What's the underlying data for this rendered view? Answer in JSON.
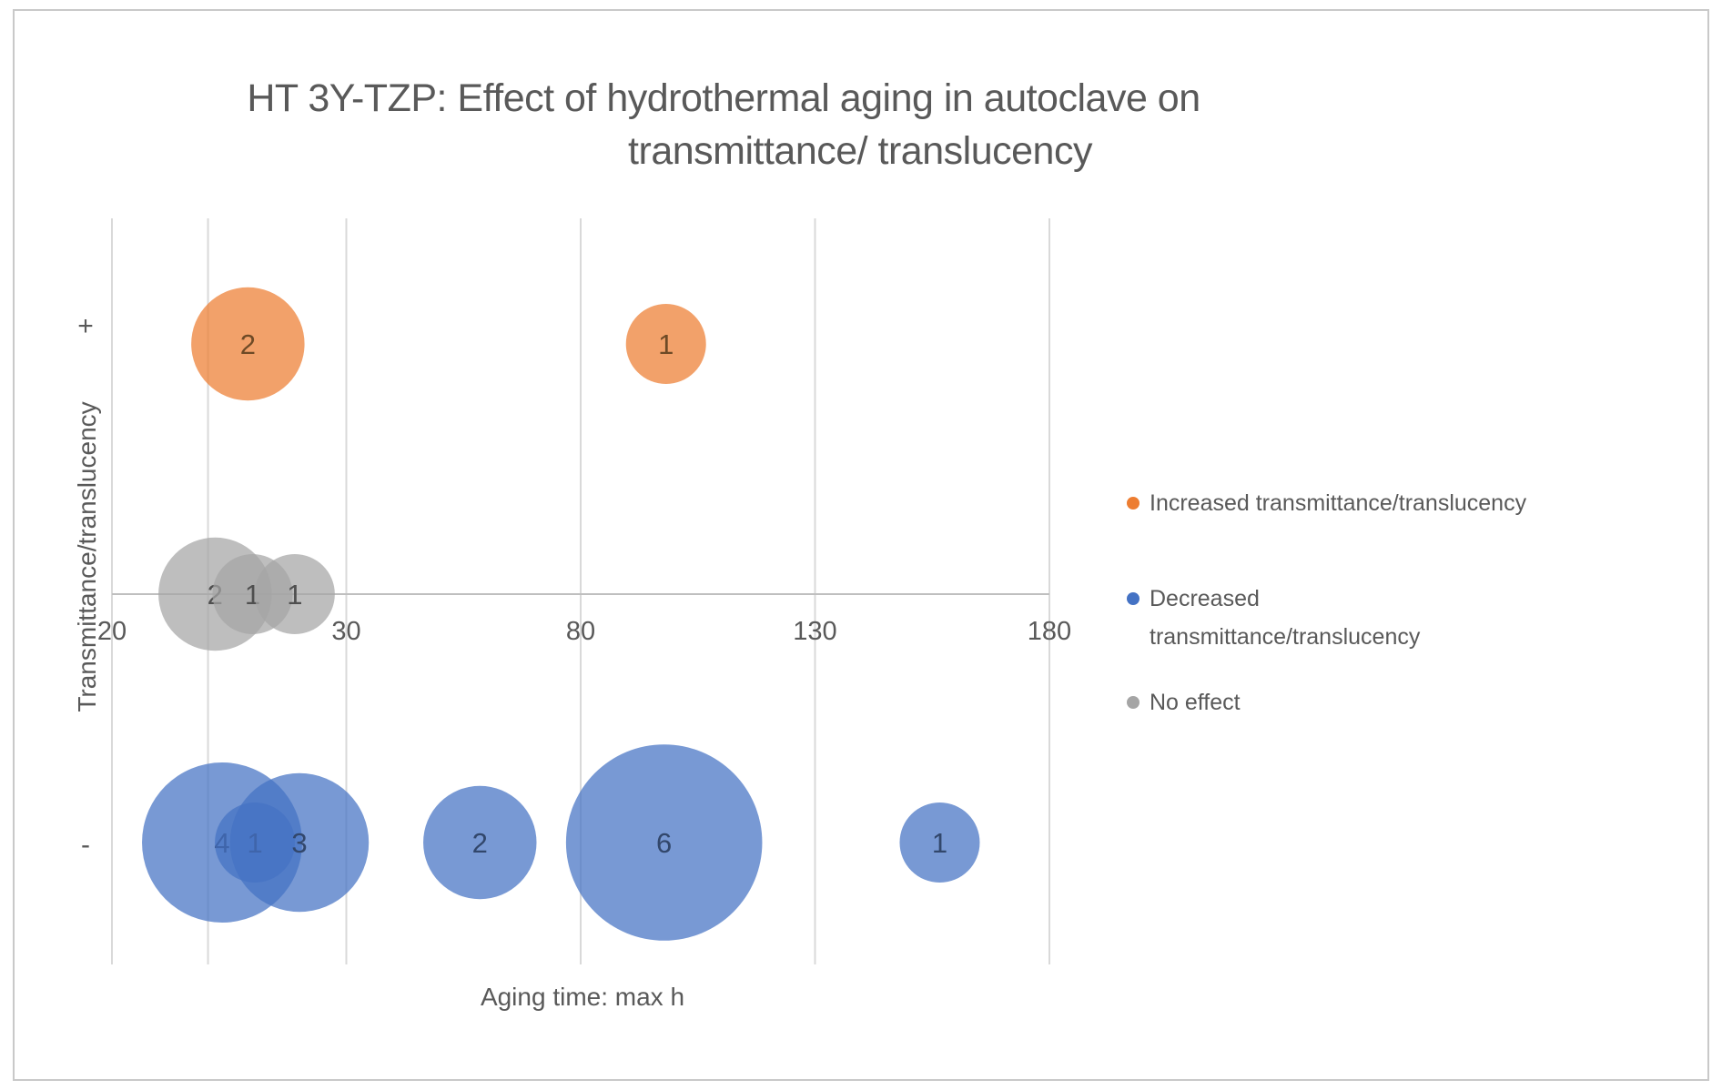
{
  "frame": {
    "border_color": "#c9c9c9",
    "background": "#ffffff"
  },
  "title": {
    "line1": "HT 3Y-TZP: Effect of hydrothermal aging in autoclave on",
    "line2": "transmittance/ translucency",
    "color": "#595959"
  },
  "axes": {
    "x": {
      "title": "Aging time: max h",
      "tick_labels": [
        "20",
        "30",
        "80",
        "130",
        "180"
      ]
    },
    "y": {
      "title": "Transmittance/translucency",
      "plus_label": "+",
      "minus_label": "-"
    }
  },
  "legend": {
    "items": [
      {
        "color": "#ED7D31",
        "lines": [
          "Increased transmittance/translucency"
        ]
      },
      {
        "color": "#4472C4",
        "lines": [
          "Decreased",
          "transmittance/translucency"
        ]
      },
      {
        "color": "#A5A5A5",
        "lines": [
          "No effect"
        ]
      }
    ]
  },
  "colors": {
    "gridline": "#d9d9d9",
    "zero_line": "#bfbfbf",
    "text": "#595959"
  },
  "chart_data": {
    "type": "bubble",
    "title": "HT 3Y-TZP: Effect of hydrothermal aging in autoclave on transmittance/ translucency",
    "xlabel": "Aging time: max h",
    "ylabel": "Transmittance/translucency",
    "x_axis": {
      "ticks": [
        20,
        30,
        80,
        130,
        180
      ],
      "tick_spacing": "equal",
      "extra_unlabeled_gridline_x": 24.1
    },
    "y_axis": {
      "rows": [
        "+",
        "0",
        "-"
      ],
      "gridline_at": "0"
    },
    "bubble_scale": "area proportional to count",
    "series": [
      {
        "name": "Increased transmittance/translucency",
        "color": "#ED7D31",
        "label_color": "#6e4a26",
        "points": [
          {
            "x": 25.8,
            "row": "+",
            "count": 2
          },
          {
            "x": 98.2,
            "row": "+",
            "count": 1
          }
        ]
      },
      {
        "name": "No effect",
        "color": "#A5A5A5",
        "label_color": "#4f4f4f",
        "points": [
          {
            "x": 24.4,
            "row": "0",
            "count": 2
          },
          {
            "x": 26.0,
            "row": "0",
            "count": 1
          },
          {
            "x": 27.8,
            "row": "0",
            "count": 1
          }
        ]
      },
      {
        "name": "Decreased transmittance/translucency",
        "color": "#4472C4",
        "label_color": "#32476b",
        "points": [
          {
            "x": 24.7,
            "row": "-",
            "count": 4
          },
          {
            "x": 26.1,
            "row": "-",
            "count": 1
          },
          {
            "x": 28.0,
            "row": "-",
            "count": 3
          },
          {
            "x": 58.5,
            "row": "-",
            "count": 2
          },
          {
            "x": 97.8,
            "row": "-",
            "count": 6
          },
          {
            "x": 156.6,
            "row": "-",
            "count": 1
          }
        ]
      }
    ]
  }
}
